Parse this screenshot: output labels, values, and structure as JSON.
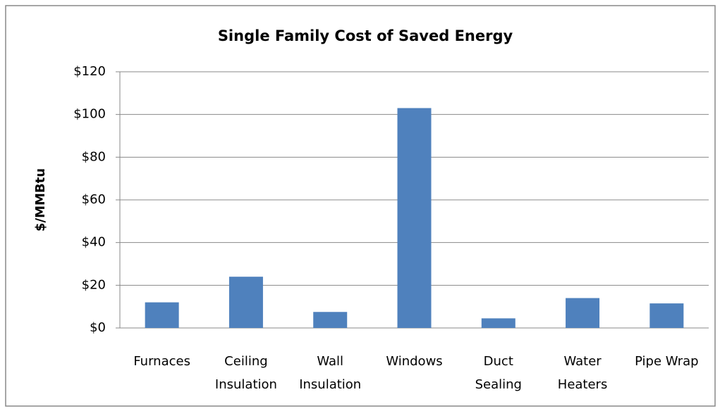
{
  "chart_data": {
    "type": "bar",
    "title": "Single Family Cost of Saved Energy",
    "y_label": "$/MMBtu",
    "categories": [
      "Furnaces",
      "Ceiling\nInsulation",
      "Wall\nInsulation",
      "Windows",
      "Duct\nSealing",
      "Water\nHeaters",
      "Pipe Wrap"
    ],
    "values": [
      12,
      24,
      7.5,
      103,
      4.5,
      14,
      11.5
    ],
    "color": "#4f81bd",
    "ylim": [
      0,
      120
    ],
    "yticks": [
      {
        "value": 0,
        "label": "$0"
      },
      {
        "value": 20,
        "label": "$20"
      },
      {
        "value": 40,
        "label": "$40"
      },
      {
        "value": 60,
        "label": "$60"
      },
      {
        "value": 80,
        "label": "$80"
      },
      {
        "value": 100,
        "label": "$100"
      },
      {
        "value": 120,
        "label": "$120"
      }
    ],
    "grid": true
  }
}
